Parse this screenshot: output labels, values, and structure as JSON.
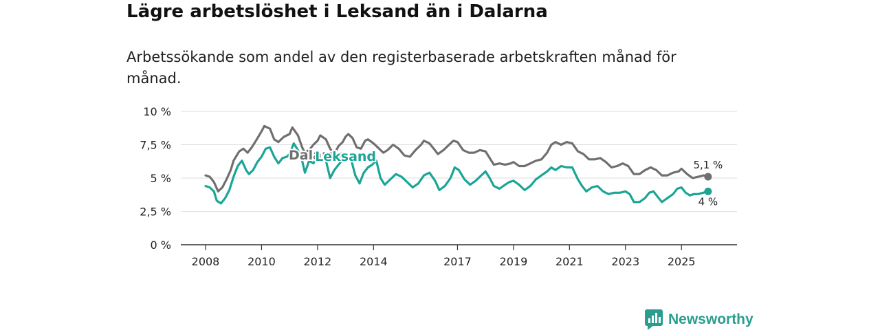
{
  "title": "Lägre arbetslöshet i Leksand än i Dalarna",
  "subtitle": "Arbetssökande som andel av den registerbaserade arbetskraften månad för månad.",
  "brand": {
    "name": "Newsworthy",
    "icon": "newsworthy-logo-icon"
  },
  "colors": {
    "leksand": "#1aa596",
    "dalarna": "#6f6f6f",
    "grid": "#dddddd",
    "axis": "#333333"
  },
  "chart_data": {
    "type": "line",
    "title": "Lägre arbetslöshet i Leksand än i Dalarna",
    "subtitle": "Arbetssökande som andel av den registerbaserade arbetskraften månad för månad.",
    "xlabel": "",
    "ylabel": "",
    "xlim": [
      2008,
      2026.1
    ],
    "ylim": [
      0,
      10
    ],
    "grid": true,
    "x_ticks": [
      {
        "value": 2008,
        "label": "2008"
      },
      {
        "value": 2010,
        "label": "2010"
      },
      {
        "value": 2012,
        "label": "2012"
      },
      {
        "value": 2014,
        "label": "2014"
      },
      {
        "value": 2017,
        "label": "2017"
      },
      {
        "value": 2019,
        "label": "2019"
      },
      {
        "value": 2021,
        "label": "2021"
      },
      {
        "value": 2023,
        "label": "2023"
      },
      {
        "value": 2025,
        "label": "2025"
      }
    ],
    "y_ticks": [
      {
        "value": 0,
        "label": "0 %"
      },
      {
        "value": 2.5,
        "label": "2,5 %"
      },
      {
        "value": 5,
        "label": "5 %"
      },
      {
        "value": 7.5,
        "label": "7,5 %"
      },
      {
        "value": 10,
        "label": "10 %"
      }
    ],
    "series": [
      {
        "name": "Dalarna",
        "label": "Dalarna",
        "end_label": "5,1 %",
        "label_anchor": {
          "x": 2012,
          "y": 6.4
        },
        "points": [
          [
            2008.0,
            5.2
          ],
          [
            2008.15,
            5.1
          ],
          [
            2008.3,
            4.7
          ],
          [
            2008.45,
            4.0
          ],
          [
            2008.6,
            4.3
          ],
          [
            2008.75,
            4.9
          ],
          [
            2008.9,
            5.6
          ],
          [
            2009.0,
            6.3
          ],
          [
            2009.2,
            7.0
          ],
          [
            2009.35,
            7.2
          ],
          [
            2009.5,
            6.9
          ],
          [
            2009.65,
            7.3
          ],
          [
            2009.8,
            7.8
          ],
          [
            2010.0,
            8.5
          ],
          [
            2010.1,
            8.9
          ],
          [
            2010.3,
            8.7
          ],
          [
            2010.45,
            7.9
          ],
          [
            2010.6,
            7.7
          ],
          [
            2010.8,
            8.1
          ],
          [
            2011.0,
            8.3
          ],
          [
            2011.1,
            8.8
          ],
          [
            2011.3,
            8.2
          ],
          [
            2011.45,
            7.3
          ],
          [
            2011.55,
            6.9
          ],
          [
            2011.7,
            7.1
          ],
          [
            2011.85,
            7.5
          ],
          [
            2012.0,
            7.8
          ],
          [
            2012.1,
            8.2
          ],
          [
            2012.3,
            7.9
          ],
          [
            2012.45,
            7.2
          ],
          [
            2012.6,
            6.8
          ],
          [
            2012.75,
            7.4
          ],
          [
            2012.9,
            7.7
          ],
          [
            2013.0,
            8.1
          ],
          [
            2013.1,
            8.3
          ],
          [
            2013.25,
            8.0
          ],
          [
            2013.4,
            7.3
          ],
          [
            2013.55,
            7.2
          ],
          [
            2013.7,
            7.8
          ],
          [
            2013.8,
            7.9
          ],
          [
            2014.0,
            7.6
          ],
          [
            2014.2,
            7.2
          ],
          [
            2014.35,
            6.9
          ],
          [
            2014.5,
            7.1
          ],
          [
            2014.7,
            7.5
          ],
          [
            2014.9,
            7.2
          ],
          [
            2015.1,
            6.7
          ],
          [
            2015.3,
            6.6
          ],
          [
            2015.5,
            7.1
          ],
          [
            2015.7,
            7.5
          ],
          [
            2015.8,
            7.8
          ],
          [
            2016.0,
            7.6
          ],
          [
            2016.15,
            7.2
          ],
          [
            2016.3,
            6.8
          ],
          [
            2016.5,
            7.1
          ],
          [
            2016.7,
            7.5
          ],
          [
            2016.85,
            7.8
          ],
          [
            2017.0,
            7.7
          ],
          [
            2017.2,
            7.1
          ],
          [
            2017.4,
            6.9
          ],
          [
            2017.6,
            6.9
          ],
          [
            2017.8,
            7.1
          ],
          [
            2018.0,
            7.0
          ],
          [
            2018.15,
            6.5
          ],
          [
            2018.3,
            6.0
          ],
          [
            2018.5,
            6.1
          ],
          [
            2018.7,
            6.0
          ],
          [
            2018.9,
            6.1
          ],
          [
            2019.0,
            6.2
          ],
          [
            2019.2,
            5.9
          ],
          [
            2019.4,
            5.9
          ],
          [
            2019.6,
            6.1
          ],
          [
            2019.8,
            6.3
          ],
          [
            2020.0,
            6.4
          ],
          [
            2020.2,
            6.9
          ],
          [
            2020.35,
            7.5
          ],
          [
            2020.5,
            7.7
          ],
          [
            2020.7,
            7.5
          ],
          [
            2020.9,
            7.7
          ],
          [
            2021.1,
            7.6
          ],
          [
            2021.3,
            7.0
          ],
          [
            2021.5,
            6.8
          ],
          [
            2021.7,
            6.4
          ],
          [
            2021.9,
            6.4
          ],
          [
            2022.1,
            6.5
          ],
          [
            2022.3,
            6.2
          ],
          [
            2022.5,
            5.8
          ],
          [
            2022.7,
            5.9
          ],
          [
            2022.9,
            6.1
          ],
          [
            2023.1,
            5.9
          ],
          [
            2023.3,
            5.3
          ],
          [
            2023.5,
            5.3
          ],
          [
            2023.7,
            5.6
          ],
          [
            2023.9,
            5.8
          ],
          [
            2024.1,
            5.6
          ],
          [
            2024.3,
            5.2
          ],
          [
            2024.5,
            5.2
          ],
          [
            2024.7,
            5.4
          ],
          [
            2024.9,
            5.5
          ],
          [
            2025.0,
            5.7
          ],
          [
            2025.2,
            5.3
          ],
          [
            2025.4,
            5.0
          ],
          [
            2025.6,
            5.1
          ],
          [
            2025.8,
            5.2
          ],
          [
            2025.95,
            5.1
          ]
        ]
      },
      {
        "name": "Leksand",
        "label": "Leksand",
        "end_label": "4 %",
        "label_anchor": {
          "x": 2013.0,
          "y": 6.3
        },
        "points": [
          [
            2008.0,
            4.4
          ],
          [
            2008.15,
            4.3
          ],
          [
            2008.3,
            4.0
          ],
          [
            2008.4,
            3.3
          ],
          [
            2008.55,
            3.1
          ],
          [
            2008.7,
            3.5
          ],
          [
            2008.85,
            4.1
          ],
          [
            2009.0,
            5.1
          ],
          [
            2009.15,
            5.9
          ],
          [
            2009.3,
            6.3
          ],
          [
            2009.45,
            5.6
          ],
          [
            2009.55,
            5.3
          ],
          [
            2009.7,
            5.6
          ],
          [
            2009.85,
            6.2
          ],
          [
            2010.0,
            6.6
          ],
          [
            2010.15,
            7.2
          ],
          [
            2010.3,
            7.3
          ],
          [
            2010.45,
            6.6
          ],
          [
            2010.6,
            6.1
          ],
          [
            2010.75,
            6.5
          ],
          [
            2010.9,
            6.6
          ],
          [
            2011.0,
            6.8
          ],
          [
            2011.15,
            7.6
          ],
          [
            2011.3,
            7.1
          ],
          [
            2011.45,
            6.3
          ],
          [
            2011.55,
            5.4
          ],
          [
            2011.7,
            6.3
          ],
          [
            2011.85,
            6.1
          ],
          [
            2012.0,
            6.7
          ],
          [
            2012.15,
            6.5
          ],
          [
            2012.3,
            6.3
          ],
          [
            2012.45,
            5.0
          ],
          [
            2012.6,
            5.6
          ],
          [
            2012.75,
            6.0
          ],
          [
            2012.9,
            6.4
          ],
          [
            2013.05,
            6.6
          ],
          [
            2013.2,
            6.4
          ],
          [
            2013.35,
            5.2
          ],
          [
            2013.5,
            4.6
          ],
          [
            2013.65,
            5.4
          ],
          [
            2013.8,
            5.8
          ],
          [
            2013.95,
            6.0
          ],
          [
            2014.1,
            6.3
          ],
          [
            2014.25,
            5.0
          ],
          [
            2014.4,
            4.5
          ],
          [
            2014.6,
            4.9
          ],
          [
            2014.8,
            5.3
          ],
          [
            2015.0,
            5.1
          ],
          [
            2015.2,
            4.7
          ],
          [
            2015.4,
            4.3
          ],
          [
            2015.6,
            4.6
          ],
          [
            2015.8,
            5.2
          ],
          [
            2016.0,
            5.4
          ],
          [
            2016.2,
            4.8
          ],
          [
            2016.35,
            4.1
          ],
          [
            2016.55,
            4.4
          ],
          [
            2016.75,
            5.0
          ],
          [
            2016.9,
            5.8
          ],
          [
            2017.05,
            5.6
          ],
          [
            2017.25,
            4.9
          ],
          [
            2017.45,
            4.5
          ],
          [
            2017.65,
            4.8
          ],
          [
            2017.85,
            5.2
          ],
          [
            2018.0,
            5.5
          ],
          [
            2018.15,
            5.0
          ],
          [
            2018.3,
            4.4
          ],
          [
            2018.5,
            4.2
          ],
          [
            2018.7,
            4.5
          ],
          [
            2018.85,
            4.7
          ],
          [
            2019.0,
            4.8
          ],
          [
            2019.2,
            4.5
          ],
          [
            2019.4,
            4.1
          ],
          [
            2019.6,
            4.4
          ],
          [
            2019.8,
            4.9
          ],
          [
            2020.0,
            5.2
          ],
          [
            2020.2,
            5.5
          ],
          [
            2020.35,
            5.8
          ],
          [
            2020.5,
            5.6
          ],
          [
            2020.7,
            5.9
          ],
          [
            2020.9,
            5.8
          ],
          [
            2021.1,
            5.8
          ],
          [
            2021.3,
            4.9
          ],
          [
            2021.45,
            4.4
          ],
          [
            2021.6,
            4.0
          ],
          [
            2021.8,
            4.3
          ],
          [
            2022.0,
            4.4
          ],
          [
            2022.2,
            4.0
          ],
          [
            2022.4,
            3.8
          ],
          [
            2022.6,
            3.9
          ],
          [
            2022.8,
            3.9
          ],
          [
            2023.0,
            4.0
          ],
          [
            2023.15,
            3.8
          ],
          [
            2023.3,
            3.2
          ],
          [
            2023.5,
            3.2
          ],
          [
            2023.7,
            3.5
          ],
          [
            2023.85,
            3.9
          ],
          [
            2024.0,
            4.0
          ],
          [
            2024.15,
            3.6
          ],
          [
            2024.3,
            3.2
          ],
          [
            2024.5,
            3.5
          ],
          [
            2024.7,
            3.8
          ],
          [
            2024.85,
            4.2
          ],
          [
            2025.0,
            4.3
          ],
          [
            2025.15,
            3.9
          ],
          [
            2025.3,
            3.7
          ],
          [
            2025.45,
            3.8
          ],
          [
            2025.6,
            3.8
          ],
          [
            2025.95,
            4.0
          ]
        ]
      }
    ]
  }
}
